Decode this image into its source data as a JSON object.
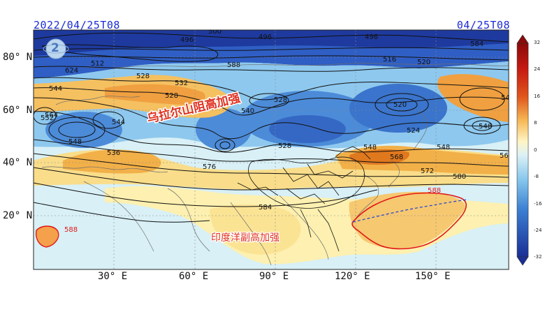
{
  "header": {
    "left_time": "2022/04/25T08",
    "right_time": "04/25T08"
  },
  "axes": {
    "y_labels": [
      "80° N",
      "60° N",
      "40° N",
      "20° N"
    ],
    "x_labels": [
      "30° E",
      "60° E",
      "90° E",
      "120° E",
      "150° E"
    ]
  },
  "annotations": {
    "ural_ridge": "乌拉尔山阻高加强",
    "indian_high": "印度洋副高加强"
  },
  "contour_labels": [
    "500",
    "496",
    "496",
    "496",
    "584",
    "512",
    "624",
    "528",
    "532",
    "588",
    "516",
    "520",
    "544",
    "540",
    "528",
    "520",
    "540",
    "544",
    "552",
    "548",
    "528",
    "524",
    "528",
    "548",
    "548",
    "548",
    "536",
    "568",
    "576",
    "568",
    "572",
    "580",
    "564",
    "588",
    "584",
    "588"
  ],
  "colorbar": {
    "ticks": [
      "32",
      "24",
      "16",
      "8",
      "0",
      "-8",
      "-16",
      "-24",
      "-32"
    ],
    "colors": [
      "#8b0a0a",
      "#c61a12",
      "#e0561c",
      "#f08a2e",
      "#f6b754",
      "#f9dd8a",
      "#fff5c4",
      "#dff2f6",
      "#b8e2f2",
      "#85c6ec",
      "#5aa6e2",
      "#3a7fd2",
      "#2456bc",
      "#1a2f96"
    ]
  },
  "palette": {
    "header_text": "#1a2bd6",
    "highlight_red": "#e03020",
    "contour_588": "#e01818",
    "dashed_line": "#2040d0"
  },
  "logo_text": "2"
}
